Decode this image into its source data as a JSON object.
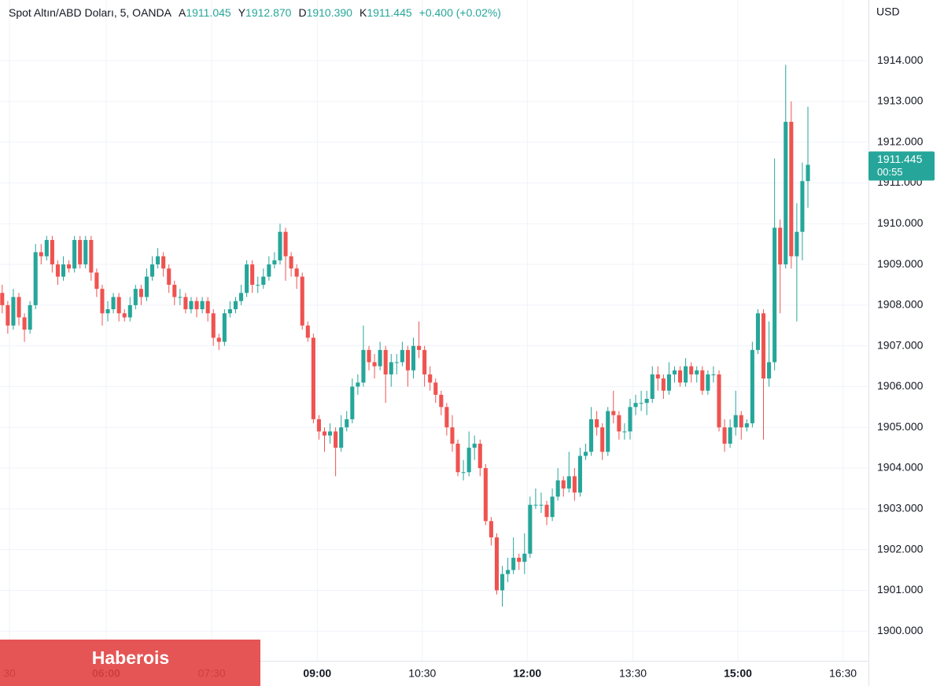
{
  "chart_data": {
    "type": "candlestick",
    "title": "Spot Altın/ABD Doları, 5, OANDA",
    "ohlc_legend": [
      {
        "key": "A",
        "value": "1911.045"
      },
      {
        "key": "Y",
        "value": "1912.870"
      },
      {
        "key": "D",
        "value": "1910.390"
      },
      {
        "key": "K",
        "value": "1911.445"
      }
    ],
    "change": "+0.400 (+0.02%)",
    "currency": "USD",
    "countdown": "00:55",
    "watermark": "Haberois",
    "up_color": "#26a69a",
    "down_color": "#ef5350",
    "grid": true,
    "xlim": [
      -0.4,
      155.9
    ],
    "xticks": [
      {
        "value": 1.3,
        "label": "30"
      },
      {
        "value": 18.7,
        "label": "06:00",
        "bold": true
      },
      {
        "value": 37.7,
        "label": "07:30"
      },
      {
        "value": 56.7,
        "label": "09:00",
        "bold": true
      },
      {
        "value": 75.6,
        "label": "10:30"
      },
      {
        "value": 94.5,
        "label": "12:00",
        "bold": true
      },
      {
        "value": 113.5,
        "label": "13:30"
      },
      {
        "value": 132.4,
        "label": "15:00",
        "bold": true
      },
      {
        "value": 151.3,
        "label": "16:30"
      }
    ],
    "ylim": [
      1899.27,
      1915.49
    ],
    "yticks": [
      {
        "value": 1900,
        "label": "1900.000"
      },
      {
        "value": 1901,
        "label": "1901.000"
      },
      {
        "value": 1902,
        "label": "1902.000"
      },
      {
        "value": 1903,
        "label": "1903.000"
      },
      {
        "value": 1904,
        "label": "1904.000"
      },
      {
        "value": 1905,
        "label": "1905.000"
      },
      {
        "value": 1906,
        "label": "1906.000"
      },
      {
        "value": 1907,
        "label": "1907.000"
      },
      {
        "value": 1908,
        "label": "1908.000"
      },
      {
        "value": 1909,
        "label": "1909.000"
      },
      {
        "value": 1910,
        "label": "1910.000"
      },
      {
        "value": 1911,
        "label": "1911.000"
      },
      {
        "value": 1912,
        "label": "1912.000"
      },
      {
        "value": 1913,
        "label": "1913.000"
      },
      {
        "value": 1914,
        "label": "1914.000"
      }
    ],
    "open": [
      1908.3,
      1908.0,
      1907.5,
      1908.2,
      1907.7,
      1907.4,
      1908.0,
      1909.3,
      1909.2,
      1909.6,
      1909.0,
      1908.7,
      1909.0,
      1908.9,
      1909.6,
      1909.0,
      1909.6,
      1908.8,
      1908.4,
      1907.8,
      1907.9,
      1908.2,
      1907.8,
      1907.7,
      1908.0,
      1908.4,
      1908.2,
      1908.7,
      1909.0,
      1909.2,
      1908.9,
      1908.5,
      1908.2,
      1908.2,
      1907.9,
      1908.1,
      1907.9,
      1908.1,
      1907.8,
      1907.2,
      1907.1,
      1907.8,
      1907.9,
      1908.1,
      1908.3,
      1909.0,
      1908.5,
      1908.5,
      1908.7,
      1909.0,
      1909.1,
      1909.8,
      1909.2,
      1908.9,
      1908.7,
      1907.5,
      1907.2,
      1905.2,
      1904.9,
      1904.8,
      1904.9,
      1904.5,
      1905.0,
      1905.2,
      1906.0,
      1906.1,
      1906.9,
      1906.6,
      1906.5,
      1906.9,
      1906.3,
      1906.6,
      1906.6,
      1906.9,
      1906.4,
      1907.0,
      1906.9,
      1906.3,
      1906.1,
      1905.8,
      1905.5,
      1905.0,
      1904.6,
      1903.9,
      1903.9,
      1904.5,
      1904.6,
      1904.0,
      1902.7,
      1902.3,
      1901.0,
      1901.4,
      1901.5,
      1901.8,
      1901.7,
      1901.9,
      1903.1,
      1903.1,
      1903.1,
      1902.8,
      1903.3,
      1903.7,
      1903.5,
      1903.8,
      1903.4,
      1904.3,
      1904.4,
      1905.2,
      1905.0,
      1904.4,
      1905.4,
      1905.3,
      1904.9,
      1904.9,
      1905.5,
      1905.6,
      1905.6,
      1905.7,
      1906.3,
      1906.2,
      1905.9,
      1906.3,
      1906.4,
      1906.1,
      1906.5,
      1906.3,
      1906.4,
      1905.9,
      1906.3,
      1906.3,
      1905.0,
      1904.6,
      1905.0,
      1905.3,
      1905.0,
      1905.1,
      1906.9,
      1907.8,
      1906.2,
      1906.6,
      1909.9,
      1909.0,
      1912.5,
      1909.2,
      1909.8,
      1911.045
    ],
    "high": [
      1908.5,
      1908.1,
      1908.4,
      1908.3,
      1907.8,
      1908.1,
      1909.5,
      1909.5,
      1909.7,
      1909.7,
      1909.1,
      1909.2,
      1909.1,
      1909.7,
      1909.7,
      1909.7,
      1909.7,
      1908.9,
      1908.5,
      1908.1,
      1908.3,
      1908.3,
      1907.9,
      1908.2,
      1908.5,
      1908.5,
      1908.9,
      1909.2,
      1909.4,
      1909.3,
      1909.0,
      1908.6,
      1908.4,
      1908.3,
      1908.2,
      1908.2,
      1908.2,
      1908.2,
      1907.9,
      1907.3,
      1907.9,
      1908.1,
      1908.2,
      1908.5,
      1909.1,
      1909.1,
      1908.7,
      1908.9,
      1909.2,
      1909.3,
      1910.0,
      1909.9,
      1909.3,
      1909.0,
      1908.8,
      1907.6,
      1907.3,
      1905.3,
      1905.0,
      1905.1,
      1905.0,
      1905.3,
      1905.4,
      1906.2,
      1906.3,
      1907.5,
      1907.0,
      1906.8,
      1907.1,
      1907.0,
      1906.8,
      1906.8,
      1907.1,
      1907.0,
      1907.2,
      1907.6,
      1907.0,
      1906.5,
      1906.2,
      1905.9,
      1905.6,
      1905.3,
      1904.7,
      1904.2,
      1904.9,
      1904.8,
      1904.7,
      1904.1,
      1902.8,
      1902.4,
      1901.6,
      1901.8,
      1902.3,
      1901.9,
      1902.4,
      1903.3,
      1903.5,
      1903.4,
      1903.2,
      1903.5,
      1904.0,
      1903.8,
      1904.4,
      1904.0,
      1904.5,
      1904.6,
      1905.5,
      1905.4,
      1905.1,
      1905.5,
      1905.9,
      1905.4,
      1905.1,
      1905.7,
      1905.8,
      1905.9,
      1905.9,
      1906.5,
      1906.5,
      1906.3,
      1906.6,
      1906.5,
      1906.5,
      1906.7,
      1906.6,
      1906.5,
      1906.5,
      1906.4,
      1906.5,
      1906.4,
      1905.2,
      1905.2,
      1905.9,
      1905.4,
      1905.2,
      1907.1,
      1907.9,
      1907.9,
      1907.6,
      1911.6,
      1910.1,
      1913.9,
      1913.0,
      1910.5,
      1911.5,
      1912.87
    ],
    "low": [
      1907.8,
      1907.3,
      1907.4,
      1907.5,
      1907.1,
      1907.3,
      1907.9,
      1909.0,
      1909.1,
      1908.8,
      1908.5,
      1908.6,
      1908.8,
      1908.8,
      1908.9,
      1908.9,
      1908.6,
      1908.2,
      1907.5,
      1907.6,
      1907.8,
      1907.6,
      1907.6,
      1907.6,
      1907.9,
      1908.0,
      1908.1,
      1908.6,
      1908.9,
      1908.7,
      1908.3,
      1908.0,
      1908.0,
      1907.8,
      1907.8,
      1907.7,
      1907.8,
      1907.6,
      1907.0,
      1906.9,
      1907.0,
      1907.7,
      1907.8,
      1908.0,
      1908.2,
      1908.3,
      1908.3,
      1908.4,
      1908.6,
      1908.9,
      1909.0,
      1908.6,
      1908.7,
      1908.4,
      1907.4,
      1907.1,
      1905.1,
      1904.7,
      1904.4,
      1904.6,
      1903.8,
      1904.4,
      1904.9,
      1905.1,
      1905.8,
      1906.0,
      1906.4,
      1906.2,
      1906.4,
      1905.6,
      1906.0,
      1906.3,
      1906.5,
      1906.0,
      1906.2,
      1906.7,
      1906.0,
      1905.9,
      1905.6,
      1905.3,
      1904.8,
      1904.4,
      1903.8,
      1903.7,
      1903.8,
      1904.2,
      1903.8,
      1902.6,
      1902.1,
      1900.9,
      1900.6,
      1901.2,
      1901.4,
      1901.5,
      1901.4,
      1901.8,
      1903.0,
      1902.9,
      1902.6,
      1902.7,
      1903.2,
      1903.3,
      1903.4,
      1903.2,
      1903.3,
      1904.2,
      1904.3,
      1904.8,
      1904.2,
      1904.3,
      1905.1,
      1904.7,
      1904.7,
      1904.7,
      1905.3,
      1905.4,
      1905.3,
      1905.6,
      1905.9,
      1905.7,
      1905.8,
      1906.1,
      1906.0,
      1906.0,
      1906.1,
      1906.1,
      1905.8,
      1905.8,
      1906.1,
      1904.9,
      1904.4,
      1904.5,
      1904.8,
      1904.7,
      1904.9,
      1905.0,
      1906.8,
      1904.7,
      1906.0,
      1906.4,
      1907.8,
      1908.9,
      1908.9,
      1907.6,
      1909.1,
      1910.39
    ],
    "close": [
      1908.0,
      1907.5,
      1908.2,
      1907.7,
      1907.4,
      1908.0,
      1909.3,
      1909.2,
      1909.6,
      1909.0,
      1908.7,
      1909.0,
      1908.9,
      1909.6,
      1909.0,
      1909.6,
      1908.8,
      1908.4,
      1907.8,
      1907.9,
      1908.2,
      1907.8,
      1907.7,
      1908.0,
      1908.4,
      1908.2,
      1908.7,
      1909.0,
      1909.2,
      1908.9,
      1908.5,
      1908.2,
      1908.2,
      1907.9,
      1908.1,
      1907.9,
      1908.1,
      1907.8,
      1907.2,
      1907.1,
      1907.8,
      1907.9,
      1908.1,
      1908.3,
      1909.0,
      1908.5,
      1908.5,
      1908.7,
      1909.0,
      1909.1,
      1909.8,
      1909.2,
      1908.9,
      1908.7,
      1907.5,
      1907.2,
      1905.2,
      1904.9,
      1904.8,
      1904.9,
      1904.5,
      1905.0,
      1905.2,
      1906.0,
      1906.1,
      1906.9,
      1906.6,
      1906.5,
      1906.9,
      1906.3,
      1906.6,
      1906.6,
      1906.9,
      1906.4,
      1907.0,
      1906.9,
      1906.3,
      1906.1,
      1905.8,
      1905.5,
      1905.0,
      1904.6,
      1903.9,
      1903.9,
      1904.5,
      1904.6,
      1904.0,
      1902.7,
      1902.3,
      1901.0,
      1901.4,
      1901.5,
      1901.8,
      1901.7,
      1901.9,
      1903.1,
      1903.1,
      1903.1,
      1902.8,
      1903.3,
      1903.7,
      1903.5,
      1903.8,
      1903.4,
      1904.3,
      1904.4,
      1905.2,
      1905.0,
      1904.4,
      1905.4,
      1905.3,
      1904.9,
      1904.9,
      1905.5,
      1905.6,
      1905.6,
      1905.7,
      1906.3,
      1906.2,
      1905.9,
      1906.3,
      1906.4,
      1906.1,
      1906.5,
      1906.3,
      1906.4,
      1905.9,
      1906.3,
      1906.3,
      1905.0,
      1904.6,
      1905.0,
      1905.3,
      1905.0,
      1905.1,
      1906.9,
      1907.8,
      1906.2,
      1906.6,
      1909.9,
      1909.0,
      1912.5,
      1909.2,
      1909.8,
      1911.045,
      1911.445
    ]
  }
}
